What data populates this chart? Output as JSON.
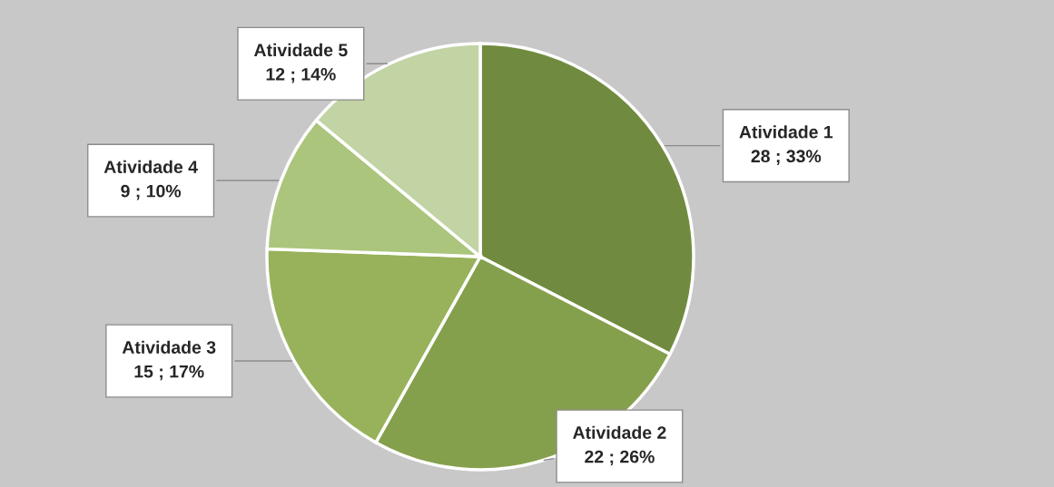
{
  "chart_data": {
    "type": "pie",
    "categories": [
      "Atividade 1",
      "Atividade 2",
      "Atividade 3",
      "Atividade 4",
      "Atividade 5"
    ],
    "values": [
      28,
      22,
      15,
      9,
      12
    ],
    "value_labels": [
      "28 ; 33%",
      "22 ; 26%",
      "15 ; 17%",
      "9 ; 10%",
      "12 ; 14%"
    ],
    "colors": [
      "#708b3f",
      "#85a04c",
      "#97b25a",
      "#abc57c",
      "#c2d3a4"
    ],
    "legend": false
  }
}
